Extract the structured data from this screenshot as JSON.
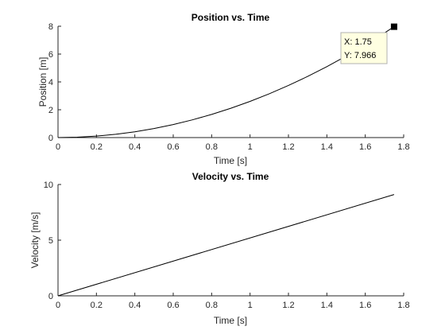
{
  "chart_data": [
    {
      "type": "line",
      "title": "Position vs. Time",
      "xlabel": "Time [s]",
      "ylabel": "Position [m]",
      "xlim": [
        0,
        1.8
      ],
      "ylim": [
        0,
        8
      ],
      "xticks": [
        "0",
        "0.2",
        "0.4",
        "0.6",
        "0.8",
        "1",
        "1.2",
        "1.4",
        "1.6",
        "1.8"
      ],
      "yticks": [
        "0",
        "2",
        "4",
        "6",
        "8"
      ],
      "grid": false,
      "series": [
        {
          "x": [
            0,
            0.1,
            0.2,
            0.3,
            0.4,
            0.5,
            0.6,
            0.7,
            0.8,
            0.9,
            1.0,
            1.1,
            1.2,
            1.3,
            1.4,
            1.5,
            1.6,
            1.7,
            1.75
          ],
          "y": [
            0,
            0.026,
            0.104,
            0.234,
            0.416,
            0.65,
            0.936,
            1.274,
            1.664,
            2.106,
            2.601,
            3.147,
            3.745,
            4.395,
            5.097,
            5.851,
            6.658,
            7.516,
            7.966
          ]
        }
      ],
      "datatip": {
        "x": 1.75,
        "y": 7.966,
        "x_text": "X: 1.75",
        "y_text": "Y: 7.966"
      }
    },
    {
      "type": "line",
      "title": "Velocity vs. Time",
      "xlabel": "Time [s]",
      "ylabel": "Velocity [m/s]",
      "xlim": [
        0,
        1.8
      ],
      "ylim": [
        0,
        10
      ],
      "xticks": [
        "0",
        "0.2",
        "0.4",
        "0.6",
        "0.8",
        "1",
        "1.2",
        "1.4",
        "1.6",
        "1.8"
      ],
      "yticks": [
        "0",
        "5",
        "10"
      ],
      "grid": false,
      "series": [
        {
          "x": [
            0,
            1.75
          ],
          "y": [
            0,
            9.1
          ]
        }
      ]
    }
  ]
}
